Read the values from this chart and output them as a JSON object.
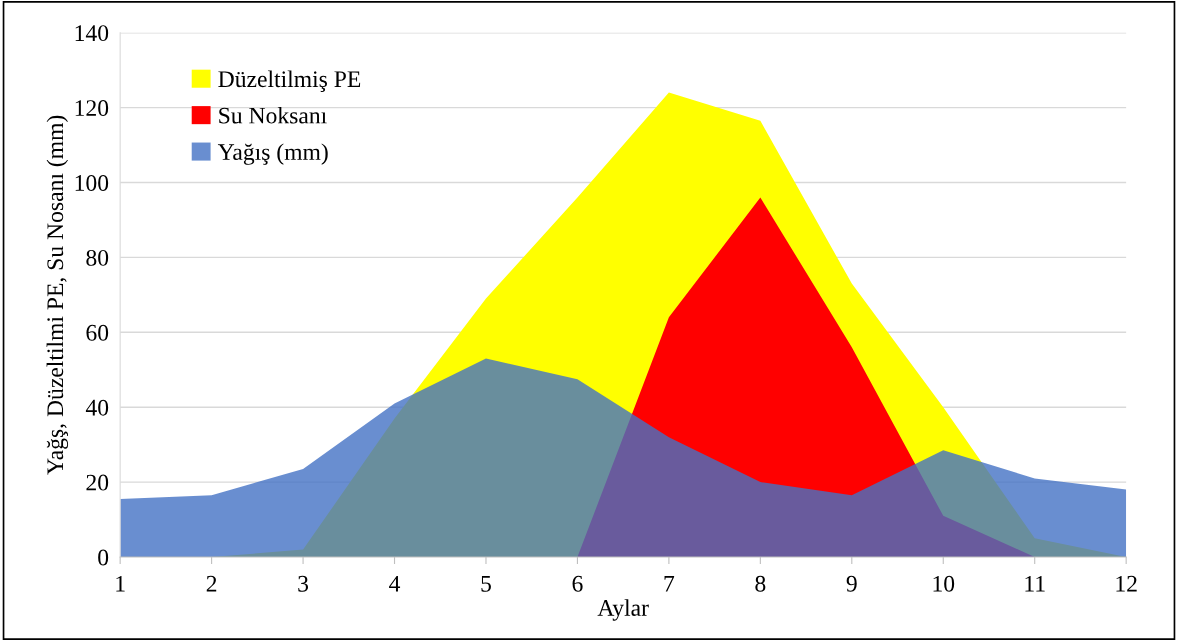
{
  "chart_data": {
    "type": "area",
    "xlabel": "Aylar",
    "ylabel": "Yağş, Düzeltilmi PE, Su Nosanı (mm)",
    "x": [
      1,
      2,
      3,
      4,
      5,
      6,
      7,
      8,
      9,
      10,
      11,
      12
    ],
    "series": [
      {
        "name": "Düzeltilmiş PE",
        "color": "#ffff00",
        "values": [
          0,
          0,
          2,
          37,
          69,
          96,
          124,
          116.5,
          73,
          40,
          5,
          0
        ]
      },
      {
        "name": "Su Noksanı",
        "color": "#ff0000",
        "values": [
          0,
          0,
          0,
          0,
          0,
          0,
          64,
          96,
          56,
          11,
          0,
          0
        ]
      },
      {
        "name": "Yağış (mm)",
        "color": "#4472c4",
        "values": [
          15.5,
          16.5,
          23.5,
          41,
          53,
          47.5,
          32,
          20,
          16.5,
          28.5,
          21,
          18
        ]
      }
    ],
    "xlim": [
      1,
      12
    ],
    "xticks": [
      1,
      2,
      3,
      4,
      5,
      6,
      7,
      8,
      9,
      10,
      11,
      12
    ],
    "ylim": [
      0,
      140
    ],
    "yticks": [
      0,
      20,
      40,
      60,
      80,
      100,
      120,
      140
    ],
    "grid": "y",
    "legend": "top left"
  }
}
